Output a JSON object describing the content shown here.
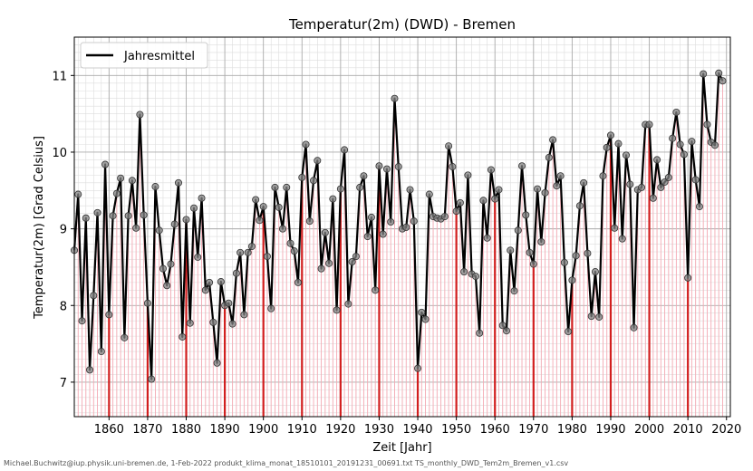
{
  "chart_data": {
    "type": "line",
    "title": "Temperatur(2m) (DWD) - Bremen",
    "xlabel": "Zeit [Jahr]",
    "ylabel": "Temperatur(2m) [Grad Celsius]",
    "xlim": [
      1851,
      2021
    ],
    "ylim": [
      6.55,
      11.5
    ],
    "xticks": [
      1860,
      1870,
      1880,
      1890,
      1900,
      1910,
      1920,
      1930,
      1940,
      1950,
      1960,
      1970,
      1980,
      1990,
      2000,
      2010,
      2020
    ],
    "yticks": [
      7,
      8,
      9,
      10,
      11
    ],
    "grid": true,
    "legend": {
      "position": "top-left",
      "entries": [
        "Jahresmittel"
      ]
    },
    "colors": {
      "line": "#000000",
      "marker": "#808080",
      "stems": "#f4aab4",
      "decade_stems": "#d21e1e",
      "grid_major": "#aaaaaa",
      "grid_minor": "#dddddd"
    },
    "x": [
      1851,
      1852,
      1853,
      1854,
      1855,
      1856,
      1857,
      1858,
      1859,
      1860,
      1861,
      1862,
      1863,
      1864,
      1865,
      1866,
      1867,
      1868,
      1869,
      1870,
      1871,
      1872,
      1873,
      1874,
      1875,
      1876,
      1877,
      1878,
      1879,
      1880,
      1881,
      1882,
      1883,
      1884,
      1885,
      1886,
      1887,
      1888,
      1889,
      1890,
      1891,
      1892,
      1893,
      1894,
      1895,
      1896,
      1897,
      1898,
      1899,
      1900,
      1901,
      1902,
      1903,
      1904,
      1905,
      1906,
      1907,
      1908,
      1909,
      1910,
      1911,
      1912,
      1913,
      1914,
      1915,
      1916,
      1917,
      1918,
      1919,
      1920,
      1921,
      1922,
      1923,
      1924,
      1925,
      1926,
      1927,
      1928,
      1929,
      1930,
      1931,
      1932,
      1933,
      1934,
      1935,
      1936,
      1937,
      1938,
      1939,
      1940,
      1941,
      1942,
      1943,
      1944,
      1945,
      1946,
      1947,
      1948,
      1949,
      1950,
      1951,
      1952,
      1953,
      1954,
      1955,
      1956,
      1957,
      1958,
      1959,
      1960,
      1961,
      1962,
      1963,
      1964,
      1965,
      1966,
      1967,
      1968,
      1969,
      1970,
      1971,
      1972,
      1973,
      1974,
      1975,
      1976,
      1977,
      1978,
      1979,
      1980,
      1981,
      1982,
      1983,
      1984,
      1985,
      1986,
      1987,
      1988,
      1989,
      1990,
      1991,
      1992,
      1993,
      1994,
      1995,
      1996,
      1997,
      1998,
      1999,
      2000,
      2001,
      2002,
      2003,
      2004,
      2005,
      2006,
      2007,
      2008,
      2009,
      2010,
      2011,
      2012,
      2013,
      2014,
      2015,
      2016,
      2017,
      2018,
      2019
    ],
    "y": [
      8.72,
      9.45,
      7.8,
      9.14,
      7.16,
      8.13,
      9.21,
      7.4,
      9.84,
      7.88,
      9.17,
      9.46,
      9.66,
      7.58,
      9.17,
      9.63,
      9.01,
      10.49,
      9.18,
      8.03,
      7.04,
      9.55,
      8.98,
      8.48,
      8.26,
      8.54,
      9.06,
      9.6,
      7.59,
      9.12,
      7.77,
      9.27,
      8.63,
      9.4,
      8.2,
      8.3,
      7.78,
      7.25,
      8.31,
      8.0,
      8.03,
      7.76,
      8.42,
      8.69,
      7.88,
      8.69,
      8.77,
      9.38,
      9.11,
      9.29,
      8.64,
      7.96,
      9.54,
      9.28,
      9.0,
      9.54,
      8.81,
      8.71,
      8.3,
      9.67,
      10.1,
      9.1,
      9.63,
      9.89,
      8.48,
      8.95,
      8.55,
      9.39,
      7.94,
      9.52,
      10.03,
      8.02,
      8.57,
      8.64,
      9.54,
      9.69,
      8.9,
      9.15,
      8.2,
      9.82,
      8.93,
      9.78,
      9.09,
      10.7,
      9.81,
      9.0,
      9.02,
      9.51,
      9.1,
      7.18,
      7.91,
      7.82,
      9.45,
      9.16,
      9.14,
      9.13,
      9.16,
      10.08,
      9.81,
      9.23,
      9.34,
      8.44,
      9.7,
      8.41,
      8.38,
      7.64,
      9.37,
      8.88,
      9.77,
      9.39,
      9.51,
      7.74,
      7.67,
      8.72,
      8.19,
      8.98,
      9.82,
      9.18,
      8.69,
      8.54,
      9.52,
      8.83,
      9.47,
      9.93,
      10.16,
      9.56,
      9.69,
      8.56,
      7.66,
      8.33,
      8.65,
      9.3,
      9.6,
      8.68,
      7.86,
      8.44,
      7.85,
      9.69,
      10.06,
      10.22,
      9.01,
      10.11,
      8.87,
      9.96,
      9.58,
      7.71,
      9.51,
      9.54,
      10.36,
      10.36,
      9.4,
      9.9,
      9.54,
      9.61,
      9.67,
      10.18,
      10.52,
      10.1,
      9.97,
      8.36,
      10.14,
      9.64,
      9.29,
      11.02,
      10.36,
      10.13,
      10.09,
      11.03,
      10.93
    ]
  },
  "footer_text": "Michael.Buchwitz@iup.physik.uni-bremen.de, 1-Feb-2022 produkt_klima_monat_18510101_20191231_00691.txt TS_monthly_DWD_Tem2m_Bremen_v1.csv"
}
